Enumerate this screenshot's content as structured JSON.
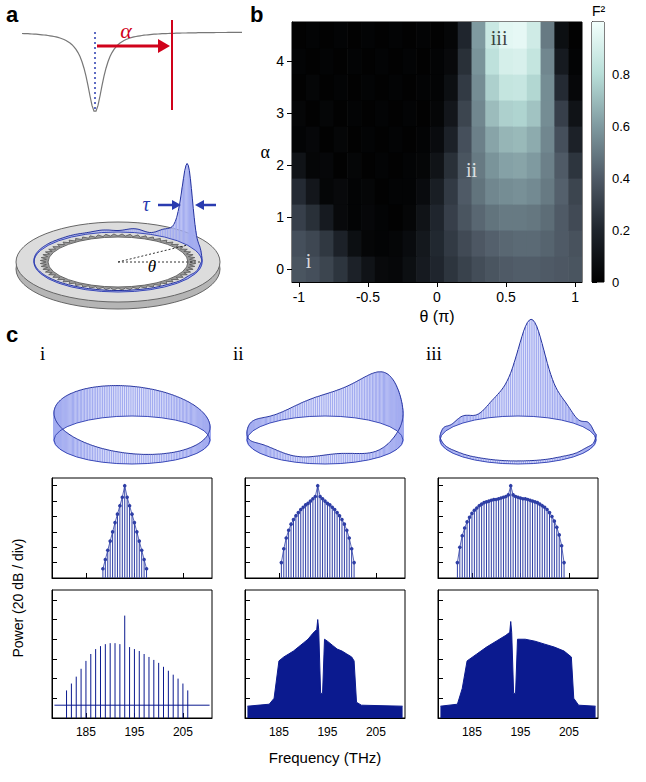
{
  "panel_labels": [
    "a",
    "b",
    "c"
  ],
  "diagram": {
    "detuning": "α",
    "pulse_width": "τ",
    "angle": "θ"
  },
  "ring_labels": [
    "i",
    "ii",
    "iii"
  ],
  "spectra_labels": {
    "ylabel": "Power (20 dB / div)",
    "xlabel": "Frequency (THz)"
  },
  "chart_data": [
    {
      "type": "heatmap",
      "xlabel": "θ (π)",
      "ylabel": "α",
      "x": [
        -1,
        -0.9,
        -0.8,
        -0.7,
        -0.6,
        -0.5,
        -0.4,
        -0.3,
        -0.2,
        -0.1,
        0,
        0.1,
        0.2,
        0.3,
        0.4,
        0.5,
        0.6,
        0.7,
        0.8,
        0.9,
        1
      ],
      "y": [
        0,
        0.5,
        1,
        1.5,
        2,
        2.5,
        3,
        3.5,
        4,
        4.5
      ],
      "values": [
        [
          0.38,
          0.36,
          0.32,
          0.26,
          0.18,
          0.1,
          0.05,
          0.04,
          0.08,
          0.14,
          0.2,
          0.26,
          0.31,
          0.35,
          0.38,
          0.4,
          0.41,
          0.41,
          0.4,
          0.39,
          0.38
        ],
        [
          0.36,
          0.33,
          0.27,
          0.18,
          0.08,
          0.03,
          0.02,
          0.03,
          0.06,
          0.13,
          0.21,
          0.28,
          0.34,
          0.39,
          0.42,
          0.44,
          0.45,
          0.45,
          0.43,
          0.4,
          0.37
        ],
        [
          0.3,
          0.24,
          0.14,
          0.05,
          0.02,
          0.04,
          0.02,
          0.01,
          0.03,
          0.1,
          0.2,
          0.3,
          0.38,
          0.44,
          0.48,
          0.5,
          0.5,
          0.49,
          0.46,
          0.4,
          0.34
        ],
        [
          0.22,
          0.12,
          0.03,
          0.05,
          0.02,
          0.03,
          0.01,
          0.02,
          0.02,
          0.06,
          0.16,
          0.28,
          0.4,
          0.48,
          0.54,
          0.56,
          0.57,
          0.55,
          0.5,
          0.42,
          0.32
        ],
        [
          0.1,
          0.03,
          0.04,
          0.01,
          0.03,
          0.01,
          0.02,
          0.01,
          0.02,
          0.03,
          0.1,
          0.24,
          0.38,
          0.5,
          0.58,
          0.62,
          0.63,
          0.6,
          0.52,
          0.4,
          0.26
        ],
        [
          0.02,
          0.04,
          0.01,
          0.03,
          0.01,
          0.02,
          0.01,
          0.02,
          0.01,
          0.02,
          0.06,
          0.18,
          0.36,
          0.52,
          0.63,
          0.68,
          0.69,
          0.65,
          0.54,
          0.36,
          0.18
        ],
        [
          0.03,
          0.01,
          0.03,
          0.01,
          0.02,
          0.01,
          0.02,
          0.01,
          0.02,
          0.01,
          0.03,
          0.12,
          0.32,
          0.54,
          0.7,
          0.76,
          0.77,
          0.72,
          0.56,
          0.3,
          0.1
        ],
        [
          0.01,
          0.03,
          0.01,
          0.02,
          0.01,
          0.02,
          0.01,
          0.02,
          0.01,
          0.02,
          0.02,
          0.08,
          0.28,
          0.56,
          0.76,
          0.84,
          0.85,
          0.78,
          0.56,
          0.22,
          0.04
        ],
        [
          0.02,
          0.01,
          0.02,
          0.01,
          0.02,
          0.01,
          0.02,
          0.01,
          0.02,
          0.01,
          0.02,
          0.05,
          0.24,
          0.58,
          0.82,
          0.9,
          0.91,
          0.84,
          0.54,
          0.14,
          0.02
        ],
        [
          0.01,
          0.02,
          0.01,
          0.02,
          0.01,
          0.02,
          0.01,
          0.02,
          0.01,
          0.02,
          0.01,
          0.03,
          0.2,
          0.6,
          0.86,
          0.95,
          0.96,
          0.88,
          0.5,
          0.08,
          0.01
        ]
      ],
      "xlim": [
        -1.05,
        1.05
      ],
      "ylim": [
        -0.25,
        4.75
      ],
      "xticks": [
        -1,
        -0.5,
        0,
        0.5,
        1
      ],
      "yticks": [
        0,
        1,
        2,
        3,
        4
      ],
      "colorbar": {
        "label": "F²",
        "range": [
          0,
          1
        ],
        "ticks": [
          0,
          0.2,
          0.4,
          0.6,
          0.8
        ]
      },
      "annotations": [
        {
          "text": "i",
          "x": -0.93,
          "y": 0.15
        },
        {
          "text": "ii",
          "x": 0.25,
          "y": 1.9
        },
        {
          "text": "iii",
          "x": 0.45,
          "y": 4.45
        }
      ]
    },
    {
      "type": "stem",
      "x": [
        188.5,
        189,
        189.5,
        190,
        190.5,
        191,
        191.5,
        192,
        192.5,
        193,
        193.5,
        194,
        194.5,
        195,
        195.5,
        196,
        196.5,
        197,
        197.5
      ],
      "values": [
        -108,
        -96,
        -84,
        -72,
        -60,
        -48,
        -37,
        -26,
        -15,
        0,
        -15,
        -26,
        -37,
        -48,
        -60,
        -72,
        -84,
        -96,
        -108
      ],
      "color": "#2f3fa6",
      "marker": "circle",
      "line_style": "solid",
      "xlim": [
        178,
        211
      ],
      "ylim": [
        -120,
        10
      ],
      "xticks": [
        185,
        195,
        205
      ],
      "yticks": [
        -120,
        -100,
        -80,
        -60,
        -40,
        -20,
        0
      ],
      "tick_labels": false
    },
    {
      "type": "stem",
      "x": [
        185.5,
        186,
        186.5,
        187,
        187.5,
        188,
        188.5,
        189,
        189.5,
        190,
        190.5,
        191,
        191.5,
        192,
        192.5,
        193,
        193.5,
        194,
        194.5,
        195,
        195.5,
        196,
        196.5,
        197,
        197.5,
        198,
        198.5,
        199,
        199.5,
        200,
        200.5
      ],
      "values": [
        -100,
        -82,
        -68,
        -58,
        -50,
        -44,
        -39,
        -35,
        -31,
        -28,
        -25,
        -23,
        -20,
        -17,
        -14,
        0,
        -14,
        -17,
        -20,
        -23,
        -25,
        -28,
        -31,
        -35,
        -39,
        -44,
        -50,
        -58,
        -68,
        -82,
        -100
      ],
      "color": "#2f3fa6",
      "marker": "circle",
      "line_style": "solid",
      "xlim": [
        178,
        211
      ],
      "ylim": [
        -120,
        10
      ],
      "xticks": [
        185,
        195,
        205
      ],
      "yticks": [
        -120,
        -100,
        -80,
        -60,
        -40,
        -20,
        0
      ],
      "tick_labels": false
    },
    {
      "type": "stem",
      "x": [
        182,
        182.5,
        183,
        183.5,
        184,
        184.5,
        185,
        185.5,
        186,
        186.5,
        187,
        187.5,
        188,
        188.5,
        189,
        189.5,
        190,
        190.5,
        191,
        191.5,
        192,
        192.5,
        193,
        193.5,
        194,
        194.5,
        195,
        195.5,
        196,
        196.5,
        197,
        197.5,
        198,
        198.5,
        199,
        199.5,
        200,
        200.5,
        201,
        201.5,
        202,
        202.5,
        203,
        203.5,
        204
      ],
      "values": [
        -100,
        -80,
        -65,
        -55,
        -47,
        -41,
        -36,
        -32,
        -29,
        -26,
        -24,
        -22,
        -21,
        -20,
        -19,
        -18,
        -18,
        -17,
        -16,
        -15,
        -14,
        -12,
        0,
        -12,
        -14,
        -15,
        -16,
        -17,
        -17,
        -18,
        -19,
        -20,
        -21,
        -22,
        -24,
        -26,
        -28,
        -31,
        -35,
        -40,
        -46,
        -54,
        -64,
        -78,
        -100
      ],
      "color": "#2f3fa6",
      "marker": "circle",
      "line_style": "solid",
      "xlim": [
        178,
        211
      ],
      "ylim": [
        -120,
        10
      ],
      "xticks": [
        185,
        195,
        205
      ],
      "yticks": [
        -120,
        -100,
        -80,
        -60,
        -40,
        -20,
        0
      ],
      "tick_labels": false
    },
    {
      "type": "stem",
      "series": [
        {
          "type": "stem",
          "color": "#0b1a8f",
          "x": [
            181,
            182,
            183,
            184,
            185,
            186,
            187,
            188,
            189,
            190,
            191,
            192,
            193,
            194,
            195,
            196,
            197,
            198,
            199,
            200,
            201,
            202,
            203,
            204,
            205,
            206
          ],
          "values": [
            -92,
            -85,
            -78,
            -70,
            -62,
            -55,
            -50,
            -47,
            -45,
            -44,
            -44,
            -45,
            -16,
            -48,
            -50,
            -52,
            -55,
            -58,
            -61,
            -64,
            -68,
            -72,
            -76,
            -80,
            -85,
            -92
          ]
        },
        {
          "type": "line",
          "color": "#0b1a8f",
          "x": [
            178.5,
            210.5
          ],
          "values": [
            -107,
            -107
          ]
        }
      ],
      "xlim": [
        178,
        211
      ],
      "ylim": [
        -120,
        10
      ],
      "xticks": [
        185,
        195,
        205
      ],
      "yticks": [
        -120,
        -100,
        -80,
        -60,
        -40,
        -20,
        0
      ],
      "tick_labels": "x"
    },
    {
      "type": "area",
      "x": [
        178.5,
        183,
        184,
        185,
        186,
        187,
        188,
        189,
        190,
        191,
        192,
        192.8,
        193,
        193.2,
        193.6,
        194,
        194.4,
        195,
        196,
        197,
        198,
        199,
        200,
        200.5,
        201,
        202,
        210.5
      ],
      "values": [
        -108,
        -106,
        -100,
        -62,
        -58,
        -55,
        -52,
        -48,
        -44,
        -40,
        -34,
        -30,
        -20,
        -30,
        -95,
        -95,
        -40,
        -42,
        -46,
        -50,
        -52,
        -55,
        -58,
        -62,
        -104,
        -107,
        -108
      ],
      "color": "#0b1a8f",
      "xlim": [
        178,
        211
      ],
      "ylim": [
        -120,
        10
      ],
      "xticks": [
        185,
        195,
        205
      ],
      "yticks": [
        -120,
        -100,
        -80,
        -60,
        -40,
        -20,
        0
      ],
      "tick_labels": "x"
    },
    {
      "type": "area",
      "x": [
        178.5,
        182,
        183,
        184,
        186,
        188,
        190,
        192,
        192.8,
        193,
        193.2,
        193.6,
        194,
        194.4,
        196,
        198,
        200,
        202,
        204,
        205.5,
        206,
        207,
        210.5
      ],
      "values": [
        -108,
        -106,
        -90,
        -62,
        -55,
        -48,
        -42,
        -36,
        -33,
        -22,
        -33,
        -95,
        -95,
        -40,
        -40,
        -42,
        -45,
        -48,
        -52,
        -58,
        -100,
        -107,
        -108
      ],
      "color": "#0b1a8f",
      "xlim": [
        178,
        211
      ],
      "ylim": [
        -120,
        10
      ],
      "xticks": [
        185,
        195,
        205
      ],
      "yticks": [
        -120,
        -100,
        -80,
        -60,
        -40,
        -20,
        0
      ],
      "tick_labels": "x"
    }
  ]
}
